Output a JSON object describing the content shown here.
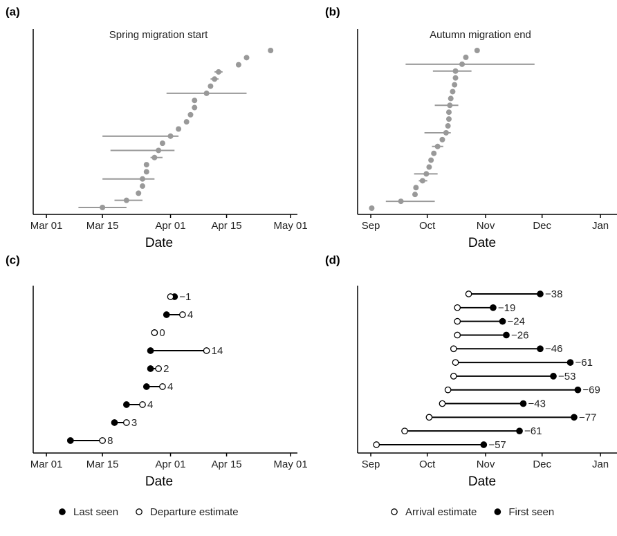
{
  "chart_data": [
    {
      "type": "dot_errorbar",
      "panel": "(a)",
      "title": "Spring migration start",
      "x_label": "Date",
      "color": "#999999",
      "xlim": [
        -3.3,
        62.7
      ],
      "xticks": [
        {
          "value": 0,
          "label": "Mar 01"
        },
        {
          "value": 14,
          "label": "Mar 15"
        },
        {
          "value": 31,
          "label": "Apr 01"
        },
        {
          "value": 45,
          "label": "Apr 15"
        },
        {
          "value": 61,
          "label": "May 01"
        }
      ],
      "values": [
        14,
        20,
        23,
        24,
        24,
        25,
        25,
        27,
        28,
        29,
        31,
        33,
        35,
        36,
        37,
        37,
        40,
        41,
        42,
        43,
        48,
        50,
        56
      ],
      "lower": [
        8,
        17,
        null,
        null,
        14,
        null,
        null,
        26,
        16,
        null,
        14,
        null,
        null,
        null,
        null,
        null,
        30,
        null,
        41,
        42,
        null,
        null,
        null
      ],
      "upper": [
        20,
        24,
        null,
        null,
        27,
        null,
        null,
        29,
        32,
        null,
        33,
        null,
        null,
        null,
        null,
        null,
        50,
        null,
        43,
        44,
        null,
        null,
        null
      ]
    },
    {
      "type": "dot_errorbar",
      "panel": "(b)",
      "title": "Autumn migration end",
      "x_label": "Date",
      "color": "#999999",
      "xlim": [
        -7,
        130.8
      ],
      "xticks": [
        {
          "value": 0,
          "label": "Sep"
        },
        {
          "value": 30,
          "label": "Oct"
        },
        {
          "value": 61,
          "label": "Nov"
        },
        {
          "value": 91,
          "label": "Dec"
        },
        {
          "value": 122,
          "label": "Jan"
        }
      ],
      "values": [
        0.5,
        16,
        23.5,
        24,
        27.5,
        29.5,
        31,
        32,
        33.5,
        35.5,
        38,
        40,
        41,
        41.5,
        41.5,
        42,
        42.5,
        43.5,
        44.5,
        45,
        45,
        48.5,
        50.5,
        56.5
      ],
      "lower": [
        null,
        8,
        null,
        null,
        25.5,
        23,
        null,
        null,
        null,
        32.5,
        null,
        28.5,
        null,
        null,
        null,
        34,
        null,
        null,
        null,
        null,
        33,
        18.5,
        null,
        null
      ],
      "upper": [
        null,
        34,
        null,
        null,
        30,
        35.5,
        null,
        null,
        null,
        38.5,
        null,
        42.5,
        null,
        null,
        null,
        46.5,
        null,
        null,
        null,
        null,
        53.5,
        87,
        null,
        null
      ]
    },
    {
      "type": "dumbbell",
      "panel": "(c)",
      "x_label": "Date",
      "legend": "bottom",
      "xlim": [
        -3.3,
        62.7
      ],
      "xticks": [
        {
          "value": 0,
          "label": "Mar 01"
        },
        {
          "value": 14,
          "label": "Mar 15"
        },
        {
          "value": 31,
          "label": "Apr 01"
        },
        {
          "value": 45,
          "label": "Apr 15"
        },
        {
          "value": 61,
          "label": "May 01"
        }
      ],
      "series": [
        {
          "name": "Last seen",
          "color": "#000000",
          "marker": "filled",
          "values": [
            6,
            17,
            20,
            25,
            26,
            26,
            27,
            30,
            32
          ]
        },
        {
          "name": "Departure estimate",
          "color": "#000000",
          "marker": "open",
          "values": [
            14,
            20,
            24,
            29,
            28,
            40,
            27,
            34,
            31
          ]
        }
      ],
      "value_labels": [
        "8",
        "3",
        "4",
        "4",
        "2",
        "14",
        "0",
        "4",
        "−1"
      ]
    },
    {
      "type": "dumbbell",
      "panel": "(d)",
      "x_label": "Date",
      "legend": "bottom",
      "xlim": [
        -7,
        130.8
      ],
      "xticks": [
        {
          "value": 0,
          "label": "Sep"
        },
        {
          "value": 30,
          "label": "Oct"
        },
        {
          "value": 61,
          "label": "Nov"
        },
        {
          "value": 91,
          "label": "Dec"
        },
        {
          "value": 122,
          "label": "Jan"
        }
      ],
      "series": [
        {
          "name": "Arrival estimate",
          "color": "#000000",
          "marker": "open",
          "values": [
            3,
            18,
            31,
            38,
            41,
            44,
            45,
            44,
            46,
            46,
            46,
            52
          ]
        },
        {
          "name": "First seen",
          "color": "#000000",
          "marker": "filled",
          "values": [
            60,
            79,
            108,
            81,
            110,
            97,
            106,
            90,
            72,
            70,
            65,
            90
          ]
        }
      ],
      "value_labels": [
        "−57",
        "−61",
        "−77",
        "−43",
        "−69",
        "−53",
        "−61",
        "−46",
        "−26",
        "−24",
        "−19",
        "−38"
      ]
    }
  ]
}
